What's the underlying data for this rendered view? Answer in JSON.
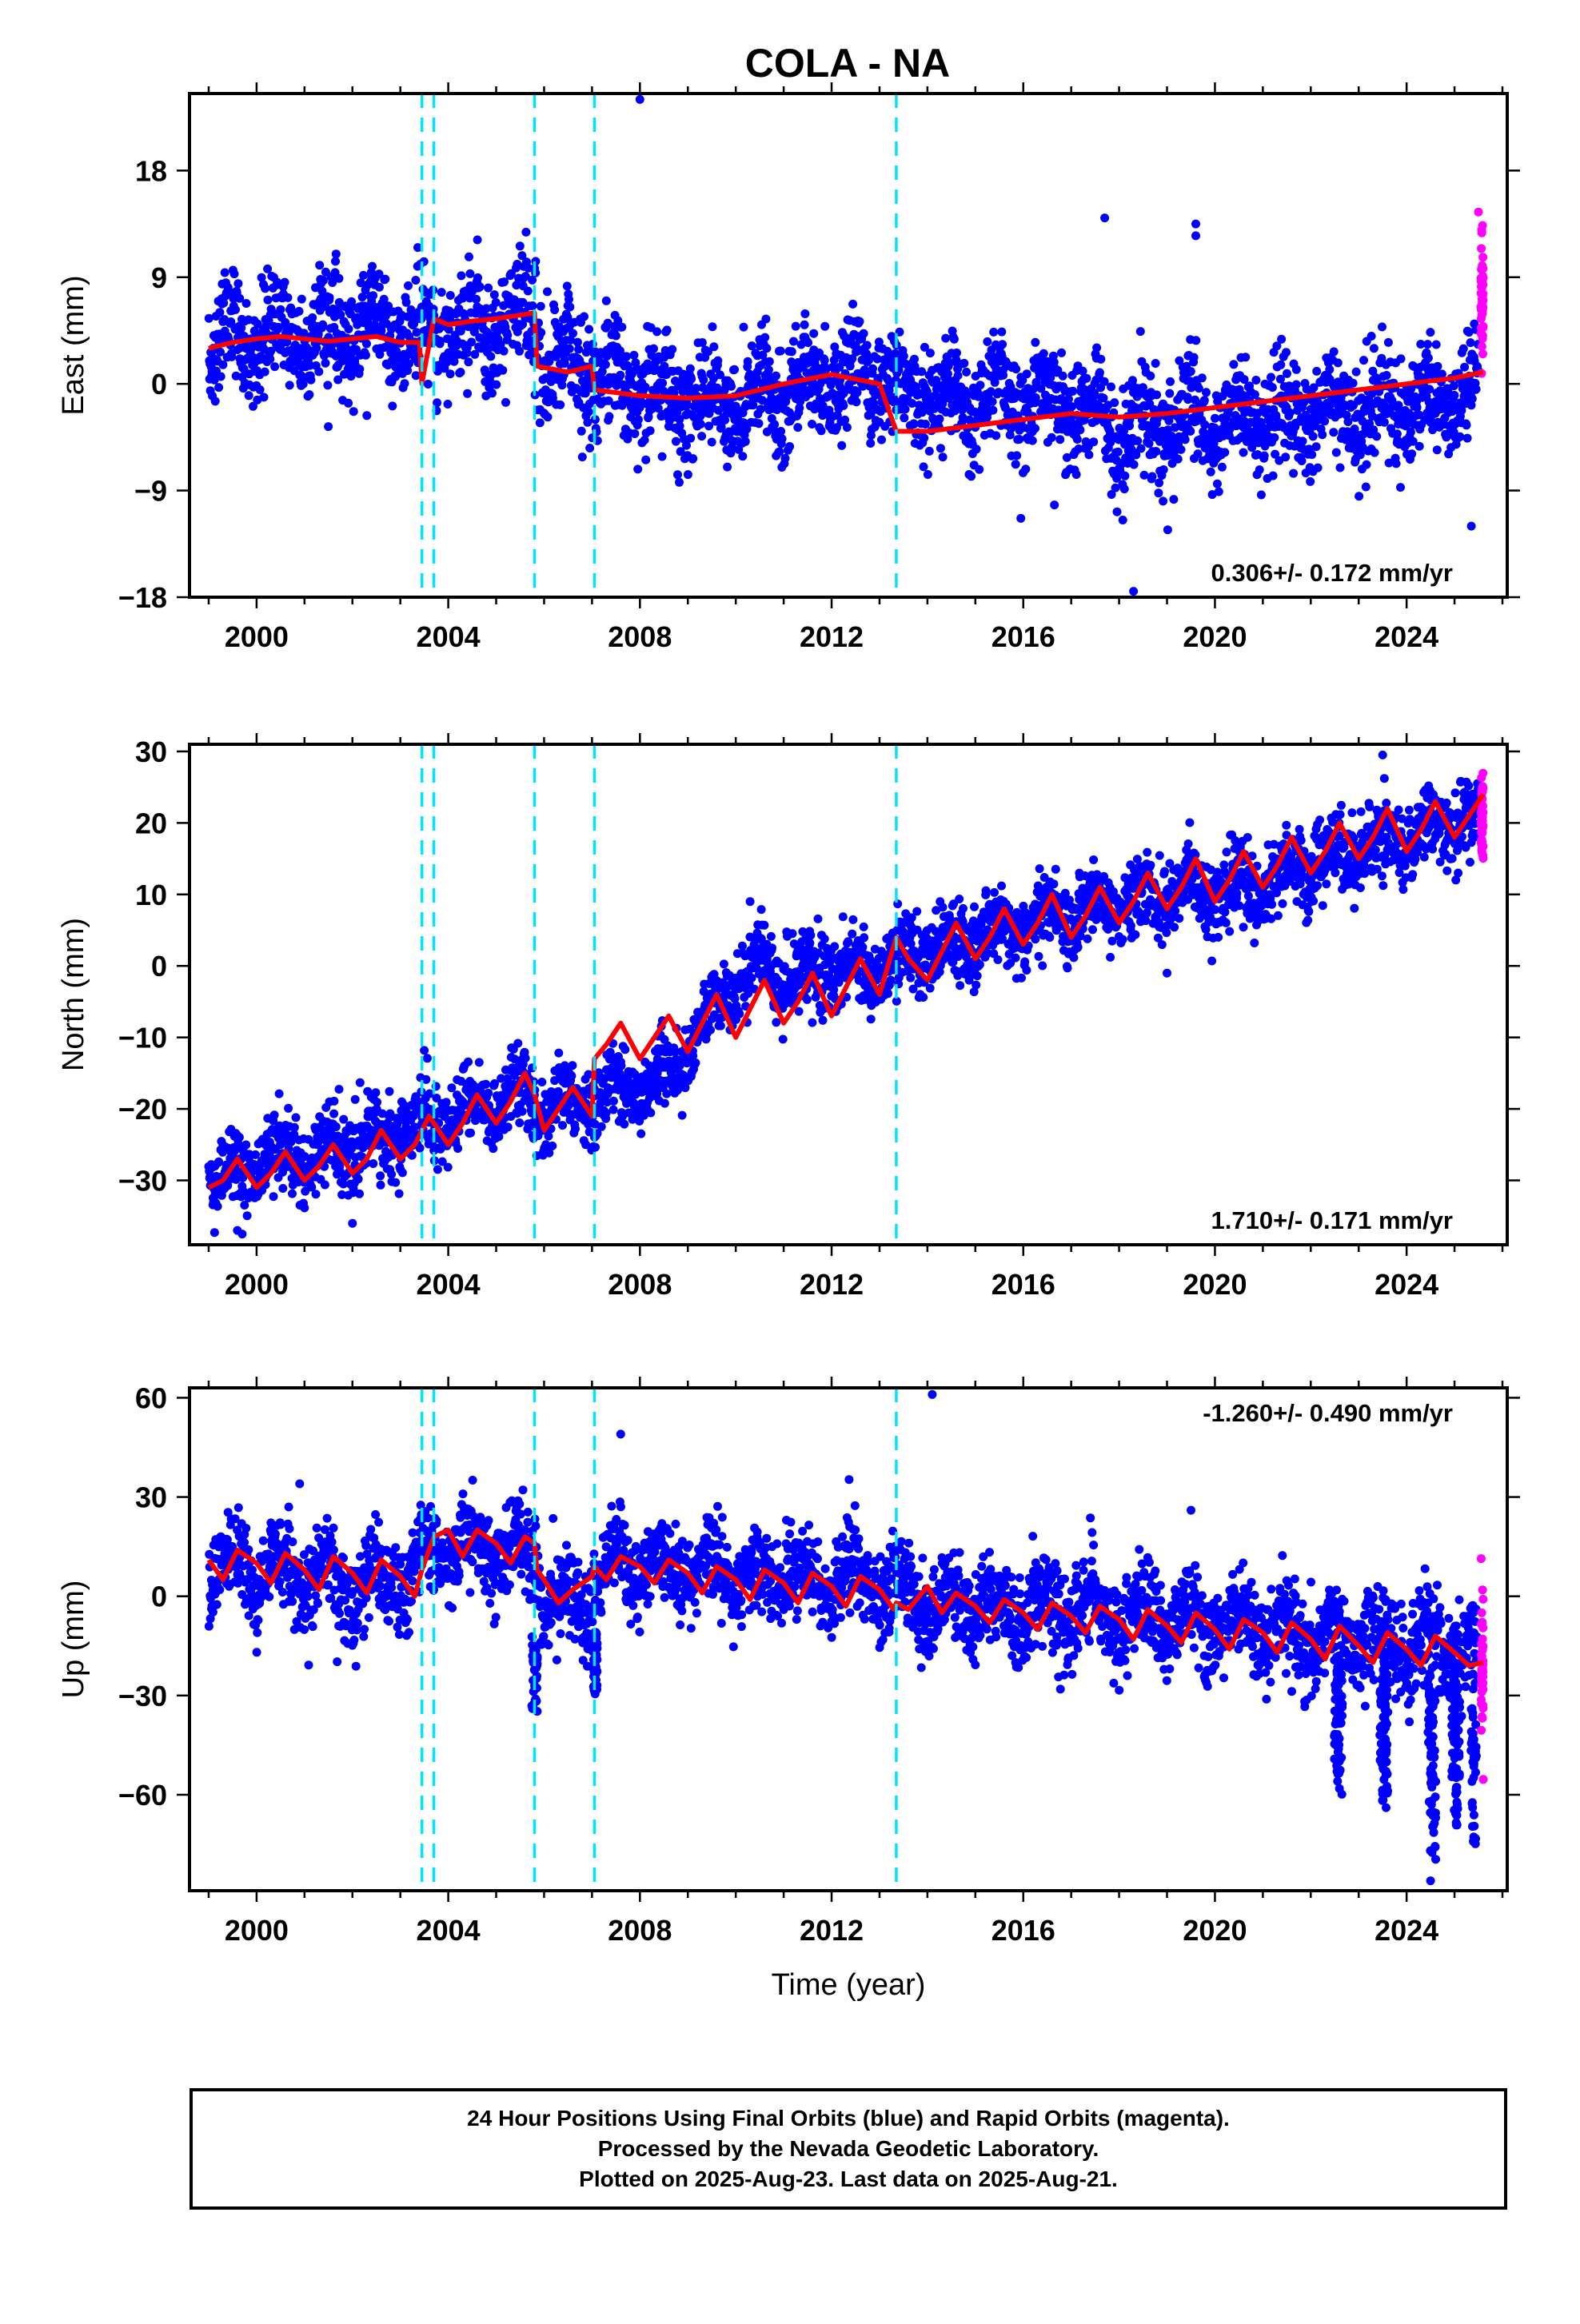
{
  "title": "COLA - NA",
  "footer": {
    "lines": [
      "24 Hour Positions Using Final Orbits (blue) and Rapid Orbits (magenta).",
      "Processed by the Nevada Geodetic Laboratory.",
      "Plotted on 2025-Aug-23. Last data on 2025-Aug-21."
    ]
  },
  "colors": {
    "final_orbits": "#0000ff",
    "rapid_orbits": "#ff00ff",
    "model": "#ff0000",
    "offsets": "#00e5ff"
  },
  "chart_data": [
    {
      "type": "scatter",
      "ylabel": "East (mm)",
      "xlabel": "",
      "xlim": [
        1998.6,
        2026.1
      ],
      "ylim": [
        -18,
        24.5
      ],
      "yticks": [
        18,
        9,
        0,
        -9,
        -18
      ],
      "xticks": [
        2000,
        2004,
        2008,
        2012,
        2016,
        2020,
        2024
      ],
      "rate_label": "0.306+/- 0.172 mm/yr",
      "rate_position": "bottom-right",
      "offset_epochs": [
        2003.45,
        2003.7,
        2005.8,
        2007.05,
        2013.35
      ],
      "series": [
        {
          "kind": "points",
          "role": "final_orbits",
          "spread": 3.0,
          "x": [
            1999.0,
            1999.5,
            2000.0,
            2000.5,
            2001.0,
            2001.5,
            2002.0,
            2002.5,
            2003.0,
            2003.4,
            2003.6,
            2004.0,
            2004.5,
            2005.0,
            2005.5,
            2005.8,
            2006.0,
            2006.5,
            2007.0,
            2007.2,
            2008.0,
            2009.0,
            2010.0,
            2011.0,
            2012.0,
            2013.0,
            2013.4,
            2014.0,
            2015.0,
            2016.0,
            2017.0,
            2018.0,
            2019.0,
            2020.0,
            2021.0,
            2022.0,
            2023.0,
            2024.0,
            2025.0,
            2025.5
          ],
          "y": [
            3.0,
            3.5,
            4.0,
            4.2,
            4.0,
            3.8,
            4.2,
            4.5,
            4.0,
            3.8,
            4.5,
            5.0,
            5.2,
            5.3,
            5.4,
            5.5,
            2.0,
            1.5,
            1.2,
            0.5,
            0.0,
            -1.0,
            -1.5,
            -1.0,
            0.0,
            0.5,
            -1.0,
            -1.0,
            -1.5,
            -1.5,
            -1.5,
            -4.0,
            -3.5,
            -3.0,
            -3.0,
            -2.5,
            -2.0,
            -2.0,
            -1.0,
            -0.5
          ]
        },
        {
          "kind": "points",
          "role": "rapid_orbits",
          "spread": 2.5,
          "x": [
            2025.55,
            2025.6
          ],
          "y": [
            6.0,
            8.0
          ]
        },
        {
          "kind": "points",
          "role": "outliers",
          "x": [
            2008.0,
            2017.7,
            2019.6,
            2019.6,
            2018.3,
            2025.35,
            2025.5
          ],
          "y": [
            24.0,
            14.0,
            13.5,
            12.5,
            -17.5,
            -12.0,
            14.5
          ]
        },
        {
          "kind": "line",
          "role": "model",
          "x": [
            1999.0,
            1999.5,
            2000.0,
            2000.5,
            2001.0,
            2001.5,
            2002.0,
            2002.5,
            2003.0,
            2003.4,
            2003.45,
            2003.7,
            2004.0,
            2004.5,
            2005.0,
            2005.5,
            2005.8,
            2005.85,
            2006.5,
            2007.0,
            2007.05,
            2008.0,
            2009.0,
            2010.0,
            2011.0,
            2012.0,
            2013.0,
            2013.35,
            2014.0,
            2015.0,
            2016.0,
            2017.0,
            2018.0,
            2019.0,
            2020.0,
            2021.0,
            2022.0,
            2023.0,
            2024.0,
            2025.0,
            2025.6
          ],
          "y": [
            3.0,
            3.5,
            3.8,
            4.0,
            3.8,
            3.6,
            3.8,
            4.0,
            3.5,
            3.5,
            0.0,
            5.5,
            5.0,
            5.3,
            5.5,
            5.8,
            6.0,
            1.5,
            1.0,
            1.5,
            -0.5,
            -1.0,
            -1.2,
            -1.0,
            0.0,
            0.8,
            0.0,
            -4.0,
            -4.0,
            -3.5,
            -3.0,
            -2.5,
            -2.8,
            -2.5,
            -2.0,
            -1.5,
            -1.0,
            -0.5,
            0.0,
            0.5,
            1.0
          ]
        }
      ]
    },
    {
      "type": "scatter",
      "ylabel": "North (mm)",
      "xlabel": "",
      "xlim": [
        1998.6,
        2026.1
      ],
      "ylim": [
        -39,
        31
      ],
      "yticks": [
        30,
        20,
        10,
        0,
        -10,
        -20,
        -30
      ],
      "xticks": [
        2000,
        2004,
        2008,
        2012,
        2016,
        2020,
        2024
      ],
      "rate_label": "1.710+/- 0.171 mm/yr",
      "rate_position": "bottom-right",
      "offset_epochs": [
        2003.45,
        2003.7,
        2005.8,
        2007.05,
        2013.35
      ],
      "series": [
        {
          "kind": "points",
          "role": "final_orbits",
          "spread": 3.5,
          "x": [
            1999.0,
            1999.5,
            2000.0,
            2000.5,
            2001.0,
            2001.5,
            2002.0,
            2002.5,
            2003.0,
            2003.5,
            2004.0,
            2004.5,
            2005.0,
            2005.5,
            2006.0,
            2006.5,
            2007.0,
            2007.5,
            2008.0,
            2008.5,
            2009.0,
            2009.5,
            2010.0,
            2010.5,
            2011.0,
            2011.5,
            2012.0,
            2013.0,
            2014.0,
            2015.0,
            2016.0,
            2017.0,
            2018.0,
            2019.0,
            2020.0,
            2021.0,
            2022.0,
            2023.0,
            2024.0,
            2025.0,
            2025.5
          ],
          "y": [
            -30.0,
            -29.0,
            -28.0,
            -27.0,
            -27.0,
            -26.0,
            -25.0,
            -24.0,
            -23.0,
            -22.0,
            -21.0,
            -20.0,
            -19.0,
            -18.0,
            -20.0,
            -20.0,
            -19.0,
            -17.0,
            -17.0,
            -16.0,
            -12.0,
            -6.0,
            -2.0,
            0.0,
            -2.0,
            -1.0,
            -1.0,
            0.0,
            2.0,
            4.0,
            6.0,
            7.0,
            9.0,
            10.0,
            11.0,
            12.0,
            14.0,
            16.0,
            18.0,
            20.0,
            21.0
          ]
        },
        {
          "kind": "points",
          "role": "rapid_orbits",
          "spread": 3.0,
          "x": [
            2025.55,
            2025.6
          ],
          "y": [
            20.0,
            21.0
          ]
        },
        {
          "kind": "points",
          "role": "outliers",
          "x": [
            1999.6,
            1999.7,
            2002.0,
            2023.5,
            2010.3,
            2019.0
          ],
          "y": [
            -37.0,
            -37.5,
            -36.0,
            29.5,
            9.0,
            -1.0
          ]
        },
        {
          "kind": "line",
          "role": "model",
          "x": [
            1999.0,
            1999.3,
            1999.6,
            2000.0,
            2000.3,
            2000.6,
            2001.0,
            2001.3,
            2001.6,
            2002.0,
            2002.3,
            2002.6,
            2003.0,
            2003.3,
            2003.6,
            2004.0,
            2004.3,
            2004.6,
            2005.0,
            2005.3,
            2005.6,
            2005.8,
            2006.0,
            2006.3,
            2006.6,
            2007.0,
            2007.05,
            2007.3,
            2007.6,
            2008.0,
            2008.3,
            2008.6,
            2009.0,
            2009.3,
            2009.6,
            2010.0,
            2010.3,
            2010.6,
            2011.0,
            2011.3,
            2011.6,
            2012.0,
            2012.3,
            2012.6,
            2013.0,
            2013.35,
            2013.6,
            2014.0,
            2014.3,
            2014.6,
            2015.0,
            2015.3,
            2015.6,
            2016.0,
            2016.3,
            2016.6,
            2017.0,
            2017.3,
            2017.6,
            2018.0,
            2018.3,
            2018.6,
            2019.0,
            2019.3,
            2019.6,
            2020.0,
            2020.3,
            2020.6,
            2021.0,
            2021.3,
            2021.6,
            2022.0,
            2022.3,
            2022.6,
            2023.0,
            2023.3,
            2023.6,
            2024.0,
            2024.3,
            2024.6,
            2025.0,
            2025.3,
            2025.6
          ],
          "y": [
            -31.0,
            -30.0,
            -27.0,
            -31.0,
            -29.0,
            -26.0,
            -30.0,
            -28.0,
            -25.0,
            -29.0,
            -27.0,
            -23.0,
            -27.0,
            -25.0,
            -21.0,
            -25.0,
            -22.0,
            -18.0,
            -22.0,
            -19.0,
            -15.0,
            -18.0,
            -23.0,
            -20.0,
            -17.0,
            -21.0,
            -13.0,
            -11.0,
            -8.0,
            -13.0,
            -10.0,
            -7.0,
            -12.0,
            -8.0,
            -4.0,
            -10.0,
            -6.0,
            -2.0,
            -8.0,
            -5.0,
            -1.0,
            -7.0,
            -3.0,
            1.0,
            -4.0,
            4.0,
            1.0,
            -2.0,
            2.0,
            6.0,
            1.0,
            4.0,
            8.0,
            3.0,
            6.0,
            10.0,
            4.0,
            7.0,
            11.0,
            6.0,
            9.0,
            13.0,
            8.0,
            11.0,
            15.0,
            9.0,
            12.0,
            16.0,
            11.0,
            14.0,
            18.0,
            13.0,
            16.0,
            20.0,
            15.0,
            18.0,
            22.0,
            16.0,
            19.0,
            23.0,
            18.0,
            21.0,
            24.0
          ]
        }
      ]
    },
    {
      "type": "scatter",
      "ylabel": "Up (mm)",
      "xlabel": "Time (year)",
      "xlim": [
        1998.6,
        2026.1
      ],
      "ylim": [
        -89,
        63
      ],
      "yticks": [
        60,
        30,
        0,
        -30,
        -60
      ],
      "xticks": [
        2000,
        2004,
        2008,
        2012,
        2016,
        2020,
        2024
      ],
      "rate_label": "-1.260+/- 0.490 mm/yr",
      "rate_position": "top-right",
      "offset_epochs": [
        2003.45,
        2003.7,
        2005.8,
        2007.05,
        2013.35
      ],
      "series": [
        {
          "kind": "points",
          "role": "final_orbits",
          "spread": 9.0,
          "x": [
            1999.0,
            2000.0,
            2001.0,
            2002.0,
            2003.0,
            2003.5,
            2004.0,
            2005.0,
            2005.8,
            2006.0,
            2007.0,
            2007.3,
            2008.0,
            2009.0,
            2010.0,
            2011.0,
            2012.0,
            2013.0,
            2013.4,
            2014.0,
            2015.0,
            2016.0,
            2017.0,
            2018.0,
            2019.0,
            2020.0,
            2021.0,
            2022.0,
            2023.0,
            2024.0,
            2025.0,
            2025.5
          ],
          "y": [
            10.0,
            8.0,
            6.0,
            4.0,
            4.0,
            12.0,
            15.0,
            15.0,
            12.0,
            0.0,
            -2.0,
            8.0,
            10.0,
            8.0,
            7.0,
            6.0,
            5.0,
            5.0,
            0.0,
            -2.0,
            -3.0,
            -4.0,
            -5.0,
            -6.0,
            -7.0,
            -8.0,
            -10.0,
            -12.0,
            -13.0,
            -15.0,
            -15.0,
            -17.0
          ]
        },
        {
          "kind": "points",
          "role": "dips",
          "x": [
            2022.55,
            2022.6,
            2023.5,
            2023.55,
            2024.5,
            2024.55,
            2025.0,
            2025.05,
            2025.4,
            2005.8,
            2007.05
          ],
          "y": [
            -50.0,
            -60.0,
            -55.0,
            -65.0,
            -65.0,
            -80.0,
            -55.0,
            -70.0,
            -75.0,
            -35.0,
            -30.0
          ]
        },
        {
          "kind": "points",
          "role": "rapid_orbits",
          "spread": 12.0,
          "x": [
            2025.55,
            2025.6
          ],
          "y": [
            -20.0,
            -30.0
          ]
        },
        {
          "kind": "points",
          "role": "outliers",
          "x": [
            2014.1,
            2007.6,
            2000.9,
            2019.5,
            2024.5
          ],
          "y": [
            61.0,
            49.0,
            34.0,
            26.0,
            -86.0
          ]
        },
        {
          "kind": "line",
          "role": "model",
          "x": [
            1999.0,
            1999.3,
            1999.6,
            2000.0,
            2000.3,
            2000.6,
            2001.0,
            2001.3,
            2001.6,
            2002.0,
            2002.3,
            2002.6,
            2003.0,
            2003.3,
            2003.45,
            2003.7,
            2004.0,
            2004.3,
            2004.6,
            2005.0,
            2005.3,
            2005.6,
            2005.8,
            2005.85,
            2006.0,
            2006.3,
            2006.6,
            2007.0,
            2007.05,
            2007.3,
            2007.6,
            2008.0,
            2008.3,
            2008.6,
            2009.0,
            2009.3,
            2009.6,
            2010.0,
            2010.3,
            2010.6,
            2011.0,
            2011.3,
            2011.6,
            2012.0,
            2012.3,
            2012.6,
            2013.0,
            2013.3,
            2013.35,
            2013.6,
            2014.0,
            2014.3,
            2014.6,
            2015.0,
            2015.3,
            2015.6,
            2016.0,
            2016.3,
            2016.6,
            2017.0,
            2017.3,
            2017.6,
            2018.0,
            2018.3,
            2018.6,
            2019.0,
            2019.3,
            2019.6,
            2020.0,
            2020.3,
            2020.6,
            2021.0,
            2021.3,
            2021.6,
            2022.0,
            2022.3,
            2022.6,
            2023.0,
            2023.3,
            2023.6,
            2024.0,
            2024.3,
            2024.6,
            2025.0,
            2025.3,
            2025.6
          ],
          "y": [
            11.0,
            5.0,
            14.0,
            10.0,
            4.0,
            13.0,
            8.0,
            2.0,
            12.0,
            7.0,
            1.0,
            11.0,
            6.0,
            0.0,
            8.0,
            18.0,
            20.0,
            12.0,
            20.0,
            16.0,
            10.0,
            18.0,
            16.0,
            8.0,
            5.0,
            -2.0,
            2.0,
            6.0,
            9.0,
            5.0,
            12.0,
            9.0,
            4.0,
            11.0,
            7.0,
            1.0,
            9.0,
            5.0,
            -1.0,
            8.0,
            4.0,
            -2.0,
            7.0,
            3.0,
            -3.0,
            6.0,
            2.0,
            -4.0,
            -2.0,
            -4.0,
            3.0,
            -5.0,
            1.0,
            -3.0,
            -8.0,
            -1.0,
            -5.0,
            -10.0,
            -2.0,
            -6.0,
            -11.0,
            -3.0,
            -7.0,
            -13.0,
            -4.0,
            -9.0,
            -14.0,
            -5.0,
            -10.0,
            -16.0,
            -7.0,
            -11.0,
            -17.0,
            -8.0,
            -13.0,
            -19.0,
            -9.0,
            -15.0,
            -20.0,
            -11.0,
            -16.0,
            -21.0,
            -12.0,
            -17.0,
            -21.0,
            -20.0
          ]
        }
      ]
    }
  ]
}
